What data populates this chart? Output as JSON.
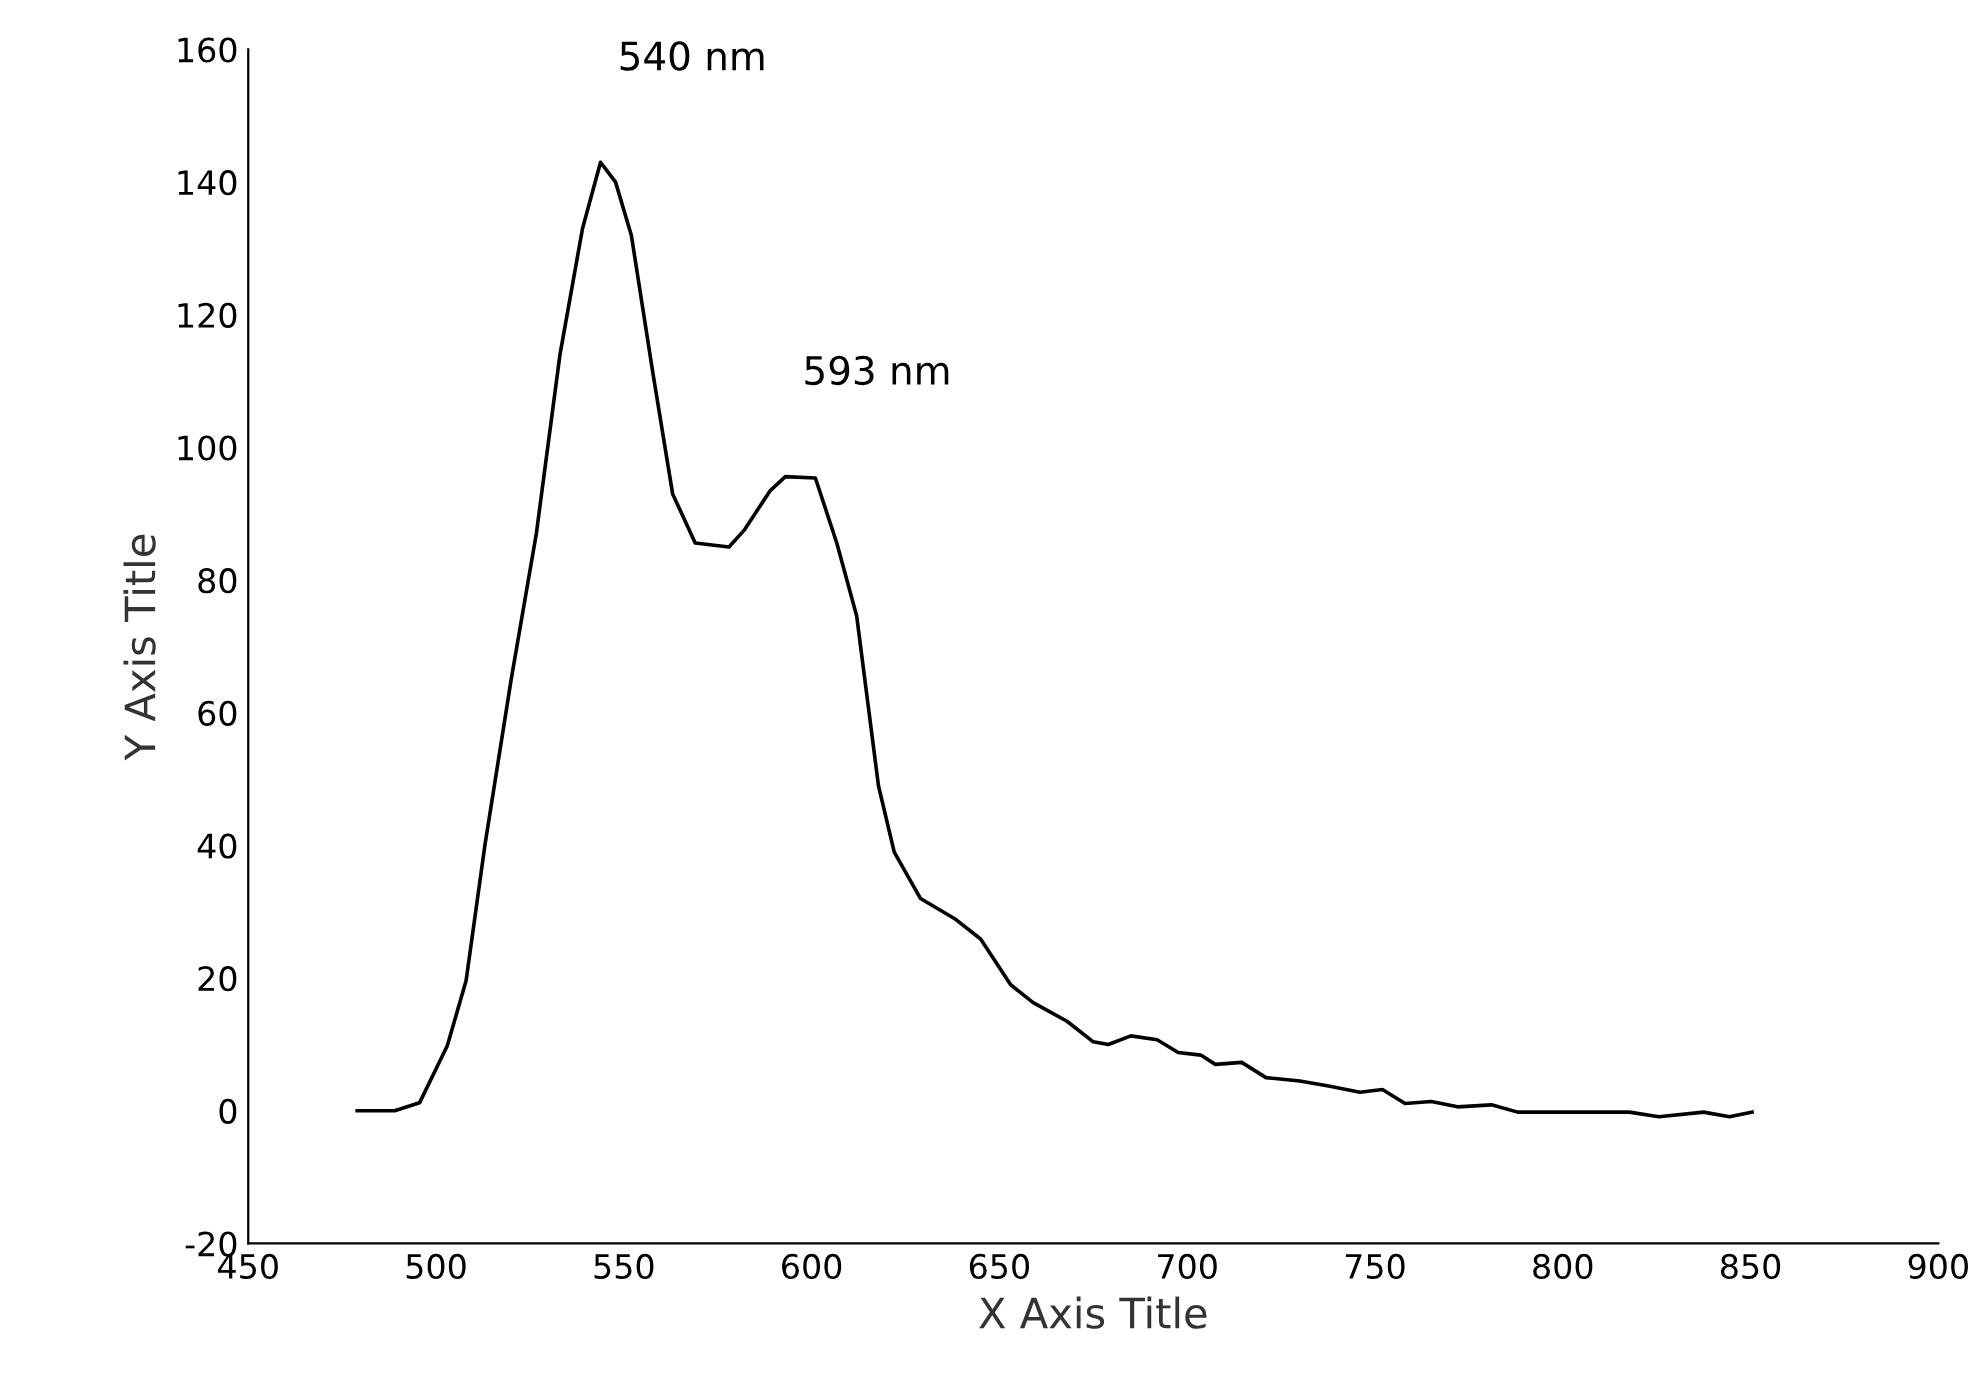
{
  "chart_data": {
    "type": "line",
    "xlabel": "X Axis Title",
    "ylabel": "Y Axis Title",
    "x": [
      479,
      489,
      495.6,
      503,
      508,
      513,
      520,
      526.7,
      533,
      539,
      543.8,
      547.8,
      552,
      557.8,
      563,
      569,
      578,
      582,
      589,
      593,
      601,
      606.7,
      612,
      617.8,
      622,
      629,
      638,
      645,
      653,
      659,
      668,
      675,
      679,
      685,
      692,
      697.6,
      703.6,
      707.5,
      714.5,
      721,
      730,
      738,
      746,
      752,
      758,
      765,
      772,
      781,
      788,
      817.7,
      825.6,
      837.5,
      844.4,
      850.4
    ],
    "series": [
      {
        "color": "#000000",
        "values": [
          0,
          0,
          1.2,
          9.8,
          19.6,
          40,
          65,
          87,
          114,
          133,
          143,
          140,
          132,
          111,
          93,
          85.6,
          85,
          87.5,
          93.5,
          95.6,
          95.4,
          85.6,
          74.6,
          49,
          39,
          32,
          29,
          25.9,
          19,
          16.3,
          13.5,
          10.4,
          10,
          11.3,
          10.7,
          8.8,
          8.4,
          7,
          7.3,
          5,
          4.5,
          3.7,
          2.8,
          3.2,
          1.1,
          1.4,
          0.6,
          0.9,
          -0.2,
          -0.2,
          -0.9,
          -0.2,
          -0.9,
          -0.2
        ]
      }
    ],
    "xlim": [
      450,
      900
    ],
    "xticks": [
      450,
      500,
      550,
      600,
      650,
      700,
      750,
      800,
      850,
      900
    ],
    "ylim": [
      -20,
      160
    ],
    "yticks": [
      -20,
      0,
      20,
      40,
      60,
      80,
      100,
      120,
      140,
      160
    ],
    "annotations": [
      {
        "text": "540 nm",
        "x": 543.8,
        "y": 143
      },
      {
        "text": "593 nm",
        "x": 593,
        "y": 95.6
      }
    ],
    "grid": false,
    "marker": "none",
    "line_style": "solid",
    "legend": false
  }
}
